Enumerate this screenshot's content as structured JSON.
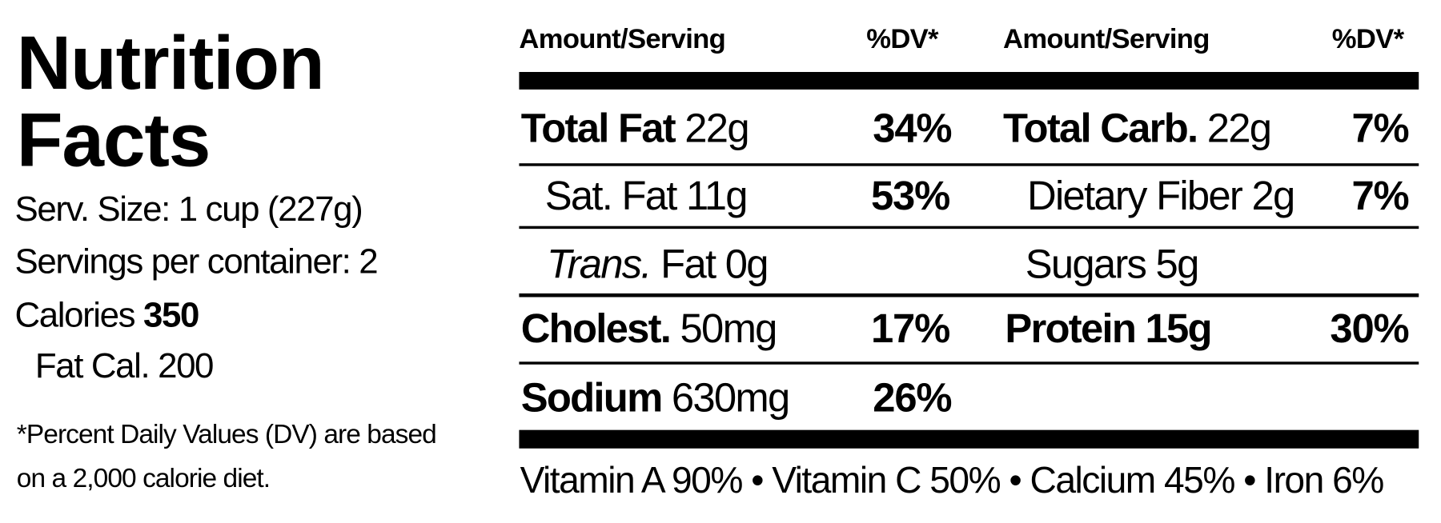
{
  "header": {
    "title": [
      "Nutrition",
      "Facts"
    ],
    "serving_size": "Serv. Size: 1 cup (227g)",
    "servings": "Servings per container: 2",
    "calories": {
      "label": "Calories",
      "value": "350"
    },
    "fat_calories": "Fat Cal. 200",
    "footnote": [
      "*Percent Daily Values (DV) are based",
      "on a 2,000 calorie diet."
    ]
  },
  "table": {
    "headers": [
      "Amount/Serving",
      "%DV*",
      "Amount/Serving",
      "%DV*"
    ],
    "rows": [
      [
        {
          "label": "Total Fat",
          "amount": "22g",
          "dv": "34%"
        },
        {
          "label": "Total Carb.",
          "amount": "22g",
          "dv": "7%"
        }
      ],
      [
        {
          "label": "Sat. Fat 11g",
          "dv": "53%"
        },
        {
          "label": "Dietary Fiber 2g",
          "dv": "7%"
        }
      ],
      [
        {
          "label_italic": "Trans.",
          "label": "Fat 0g"
        },
        {
          "label": "Sugars 5g"
        }
      ],
      [
        {
          "label": "Cholest.",
          "amount": "50mg",
          "dv": "17%"
        },
        {
          "label": "Protein 15g",
          "dv": "30%"
        }
      ],
      [
        {
          "label": "Sodium",
          "amount": "630mg",
          "dv": "26%"
        }
      ]
    ]
  },
  "vitamins": {
    "items": [
      "Vitamin A 90%",
      "Vitamin C 50%",
      "Calcium 45%",
      "Iron 6%"
    ],
    "separator": "•"
  }
}
